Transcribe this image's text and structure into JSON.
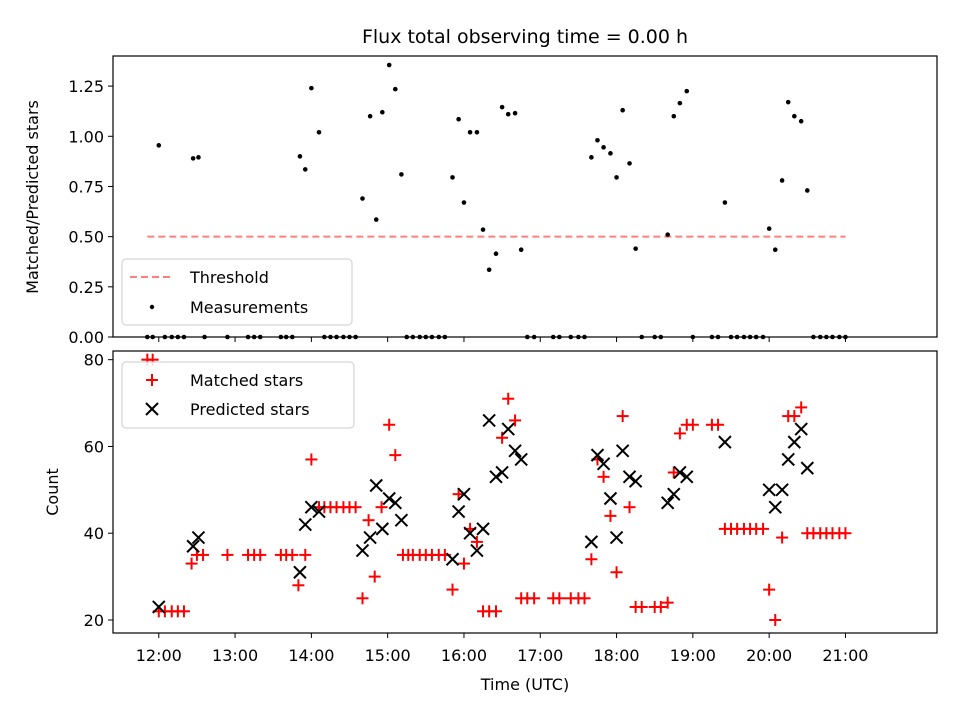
{
  "chart_data": [
    {
      "type": "scatter",
      "title": "Flux total observing time = 0.00 h",
      "xlabel": "",
      "ylabel": "Matched/Predicted stars",
      "xlim": [
        11.4,
        22.2
      ],
      "ylim": [
        0,
        1.4
      ],
      "yticks": [
        0,
        0.25,
        0.5,
        0.75,
        1.0,
        1.25
      ],
      "ytick_labels": [
        "0.00",
        "0.25",
        "0.50",
        "0.75",
        "1.00",
        "1.25"
      ],
      "legend_position": "lower-left",
      "series": [
        {
          "name": "Threshold",
          "kind": "dashed-line",
          "color": "#ff7f7f",
          "x": [
            11.85,
            21.0
          ],
          "y": [
            0.5,
            0.5
          ]
        },
        {
          "name": "Measurements",
          "kind": "point",
          "color": "#000000",
          "points": [
            [
              11.85,
              0
            ],
            [
              11.92,
              0
            ],
            [
              12.0,
              0.955
            ],
            [
              12.08,
              0
            ],
            [
              12.17,
              0
            ],
            [
              12.25,
              0
            ],
            [
              12.33,
              0
            ],
            [
              12.45,
              0.89
            ],
            [
              12.52,
              0.895
            ],
            [
              12.6,
              0
            ],
            [
              12.9,
              0
            ],
            [
              13.17,
              0
            ],
            [
              13.25,
              0
            ],
            [
              13.33,
              0
            ],
            [
              13.6,
              0
            ],
            [
              13.67,
              0
            ],
            [
              13.75,
              0
            ],
            [
              13.85,
              0.9
            ],
            [
              13.92,
              0.835
            ],
            [
              14.0,
              1.24
            ],
            [
              14.1,
              1.02
            ],
            [
              14.17,
              0
            ],
            [
              14.25,
              0
            ],
            [
              14.33,
              0
            ],
            [
              14.42,
              0
            ],
            [
              14.5,
              0
            ],
            [
              14.58,
              0
            ],
            [
              14.67,
              0.69
            ],
            [
              14.77,
              1.1
            ],
            [
              14.85,
              0.585
            ],
            [
              14.93,
              1.12
            ],
            [
              15.02,
              1.355
            ],
            [
              15.1,
              1.235
            ],
            [
              15.18,
              0.81
            ],
            [
              15.25,
              0
            ],
            [
              15.33,
              0
            ],
            [
              15.42,
              0
            ],
            [
              15.5,
              0
            ],
            [
              15.58,
              0
            ],
            [
              15.67,
              0
            ],
            [
              15.75,
              0
            ],
            [
              15.85,
              0.795
            ],
            [
              15.93,
              1.085
            ],
            [
              16.0,
              0.67
            ],
            [
              16.08,
              1.02
            ],
            [
              16.17,
              1.02
            ],
            [
              16.25,
              0.535
            ],
            [
              16.33,
              0.335
            ],
            [
              16.42,
              0.415
            ],
            [
              16.5,
              1.145
            ],
            [
              16.58,
              1.11
            ],
            [
              16.67,
              1.115
            ],
            [
              16.75,
              0.435
            ],
            [
              16.83,
              0
            ],
            [
              16.92,
              0
            ],
            [
              17.17,
              0
            ],
            [
              17.25,
              0
            ],
            [
              17.4,
              0
            ],
            [
              17.5,
              0
            ],
            [
              17.58,
              0
            ],
            [
              17.67,
              0.895
            ],
            [
              17.75,
              0.98
            ],
            [
              17.83,
              0.945
            ],
            [
              17.92,
              0.915
            ],
            [
              18.0,
              0.795
            ],
            [
              18.08,
              1.13
            ],
            [
              18.17,
              0.865
            ],
            [
              18.25,
              0.44
            ],
            [
              18.33,
              0
            ],
            [
              18.5,
              0
            ],
            [
              18.58,
              0
            ],
            [
              18.67,
              0.51
            ],
            [
              18.75,
              1.1
            ],
            [
              18.83,
              1.165
            ],
            [
              18.92,
              1.225
            ],
            [
              19.0,
              0
            ],
            [
              19.25,
              0
            ],
            [
              19.33,
              0
            ],
            [
              19.42,
              0.67
            ],
            [
              19.5,
              0
            ],
            [
              19.58,
              0
            ],
            [
              19.67,
              0
            ],
            [
              19.75,
              0
            ],
            [
              19.83,
              0
            ],
            [
              19.92,
              0
            ],
            [
              20.0,
              0.54
            ],
            [
              20.08,
              0.435
            ],
            [
              20.17,
              0.78
            ],
            [
              20.25,
              1.17
            ],
            [
              20.33,
              1.1
            ],
            [
              20.42,
              1.075
            ],
            [
              20.5,
              0.73
            ],
            [
              20.58,
              0
            ],
            [
              20.67,
              0
            ],
            [
              20.75,
              0
            ],
            [
              20.83,
              0
            ],
            [
              20.92,
              0
            ],
            [
              21.0,
              0
            ]
          ]
        }
      ]
    },
    {
      "type": "scatter",
      "title": "",
      "xlabel": "Time (UTC)",
      "ylabel": "Count",
      "xlim": [
        11.4,
        22.2
      ],
      "ylim": [
        17,
        82
      ],
      "xticks": [
        12,
        13,
        14,
        15,
        16,
        17,
        18,
        19,
        20,
        21
      ],
      "xtick_labels": [
        "12:00",
        "13:00",
        "14:00",
        "15:00",
        "16:00",
        "17:00",
        "18:00",
        "19:00",
        "20:00",
        "21:00"
      ],
      "yticks": [
        20,
        40,
        60,
        80
      ],
      "ytick_labels": [
        "20",
        "40",
        "60",
        "80"
      ],
      "legend_position": "upper-left",
      "series": [
        {
          "name": "Matched stars",
          "kind": "plus",
          "color": "#ff0000",
          "points": [
            [
              11.85,
              80
            ],
            [
              11.92,
              80
            ],
            [
              12.0,
              22
            ],
            [
              12.08,
              22
            ],
            [
              12.17,
              22
            ],
            [
              12.25,
              22
            ],
            [
              12.33,
              22
            ],
            [
              12.43,
              33
            ],
            [
              12.5,
              35
            ],
            [
              12.58,
              35
            ],
            [
              12.9,
              35
            ],
            [
              13.17,
              35
            ],
            [
              13.25,
              35
            ],
            [
              13.33,
              35
            ],
            [
              13.6,
              35
            ],
            [
              13.67,
              35
            ],
            [
              13.75,
              35
            ],
            [
              13.83,
              28
            ],
            [
              13.92,
              35
            ],
            [
              14.0,
              57
            ],
            [
              14.1,
              46
            ],
            [
              14.17,
              46
            ],
            [
              14.25,
              46
            ],
            [
              14.33,
              46
            ],
            [
              14.42,
              46
            ],
            [
              14.5,
              46
            ],
            [
              14.58,
              46
            ],
            [
              14.67,
              25
            ],
            [
              14.75,
              43
            ],
            [
              14.83,
              30
            ],
            [
              14.92,
              46
            ],
            [
              15.02,
              65
            ],
            [
              15.1,
              58
            ],
            [
              15.2,
              35
            ],
            [
              15.27,
              35
            ],
            [
              15.33,
              35
            ],
            [
              15.42,
              35
            ],
            [
              15.5,
              35
            ],
            [
              15.58,
              35
            ],
            [
              15.67,
              35
            ],
            [
              15.75,
              35
            ],
            [
              15.85,
              27
            ],
            [
              15.93,
              49
            ],
            [
              16.0,
              33
            ],
            [
              16.08,
              41
            ],
            [
              16.17,
              38
            ],
            [
              16.25,
              22
            ],
            [
              16.33,
              22
            ],
            [
              16.42,
              22
            ],
            [
              16.5,
              62
            ],
            [
              16.58,
              71
            ],
            [
              16.67,
              66
            ],
            [
              16.75,
              25
            ],
            [
              16.83,
              25
            ],
            [
              16.92,
              25
            ],
            [
              17.17,
              25
            ],
            [
              17.25,
              25
            ],
            [
              17.4,
              25
            ],
            [
              17.5,
              25
            ],
            [
              17.58,
              25
            ],
            [
              17.67,
              34
            ],
            [
              17.75,
              57
            ],
            [
              17.83,
              53
            ],
            [
              17.92,
              44
            ],
            [
              18.0,
              31
            ],
            [
              18.08,
              67
            ],
            [
              18.17,
              46
            ],
            [
              18.25,
              23
            ],
            [
              18.33,
              23
            ],
            [
              18.5,
              23
            ],
            [
              18.58,
              23
            ],
            [
              18.67,
              24
            ],
            [
              18.75,
              54
            ],
            [
              18.83,
              63
            ],
            [
              18.92,
              65
            ],
            [
              19.0,
              65
            ],
            [
              19.25,
              65
            ],
            [
              19.33,
              65
            ],
            [
              19.42,
              41
            ],
            [
              19.5,
              41
            ],
            [
              19.58,
              41
            ],
            [
              19.67,
              41
            ],
            [
              19.75,
              41
            ],
            [
              19.83,
              41
            ],
            [
              19.92,
              41
            ],
            [
              20.0,
              27
            ],
            [
              20.08,
              20
            ],
            [
              20.17,
              39
            ],
            [
              20.25,
              67
            ],
            [
              20.33,
              67
            ],
            [
              20.42,
              69
            ],
            [
              20.5,
              40
            ],
            [
              20.58,
              40
            ],
            [
              20.67,
              40
            ],
            [
              20.75,
              40
            ],
            [
              20.83,
              40
            ],
            [
              20.92,
              40
            ],
            [
              21.0,
              40
            ]
          ]
        },
        {
          "name": "Predicted stars",
          "kind": "x",
          "color": "#000000",
          "points": [
            [
              12.0,
              23
            ],
            [
              12.45,
              37
            ],
            [
              12.52,
              39
            ],
            [
              13.85,
              31
            ],
            [
              13.92,
              42
            ],
            [
              14.0,
              46
            ],
            [
              14.1,
              45
            ],
            [
              14.67,
              36
            ],
            [
              14.77,
              39
            ],
            [
              14.85,
              51
            ],
            [
              14.93,
              41
            ],
            [
              15.02,
              48
            ],
            [
              15.1,
              47
            ],
            [
              15.18,
              43
            ],
            [
              15.85,
              34
            ],
            [
              15.93,
              45
            ],
            [
              16.0,
              49
            ],
            [
              16.08,
              40
            ],
            [
              16.17,
              36
            ],
            [
              16.25,
              41
            ],
            [
              16.33,
              66
            ],
            [
              16.42,
              53
            ],
            [
              16.5,
              54
            ],
            [
              16.58,
              64
            ],
            [
              16.67,
              59
            ],
            [
              16.75,
              57
            ],
            [
              17.67,
              38
            ],
            [
              17.75,
              58
            ],
            [
              17.83,
              56
            ],
            [
              17.92,
              48
            ],
            [
              18.0,
              39
            ],
            [
              18.08,
              59
            ],
            [
              18.17,
              53
            ],
            [
              18.25,
              52
            ],
            [
              18.67,
              47
            ],
            [
              18.75,
              49
            ],
            [
              18.83,
              54
            ],
            [
              18.92,
              53
            ],
            [
              19.42,
              61
            ],
            [
              20.0,
              50
            ],
            [
              20.08,
              46
            ],
            [
              20.17,
              50
            ],
            [
              20.25,
              57
            ],
            [
              20.33,
              61
            ],
            [
              20.42,
              64
            ],
            [
              20.5,
              55
            ]
          ]
        }
      ]
    }
  ]
}
